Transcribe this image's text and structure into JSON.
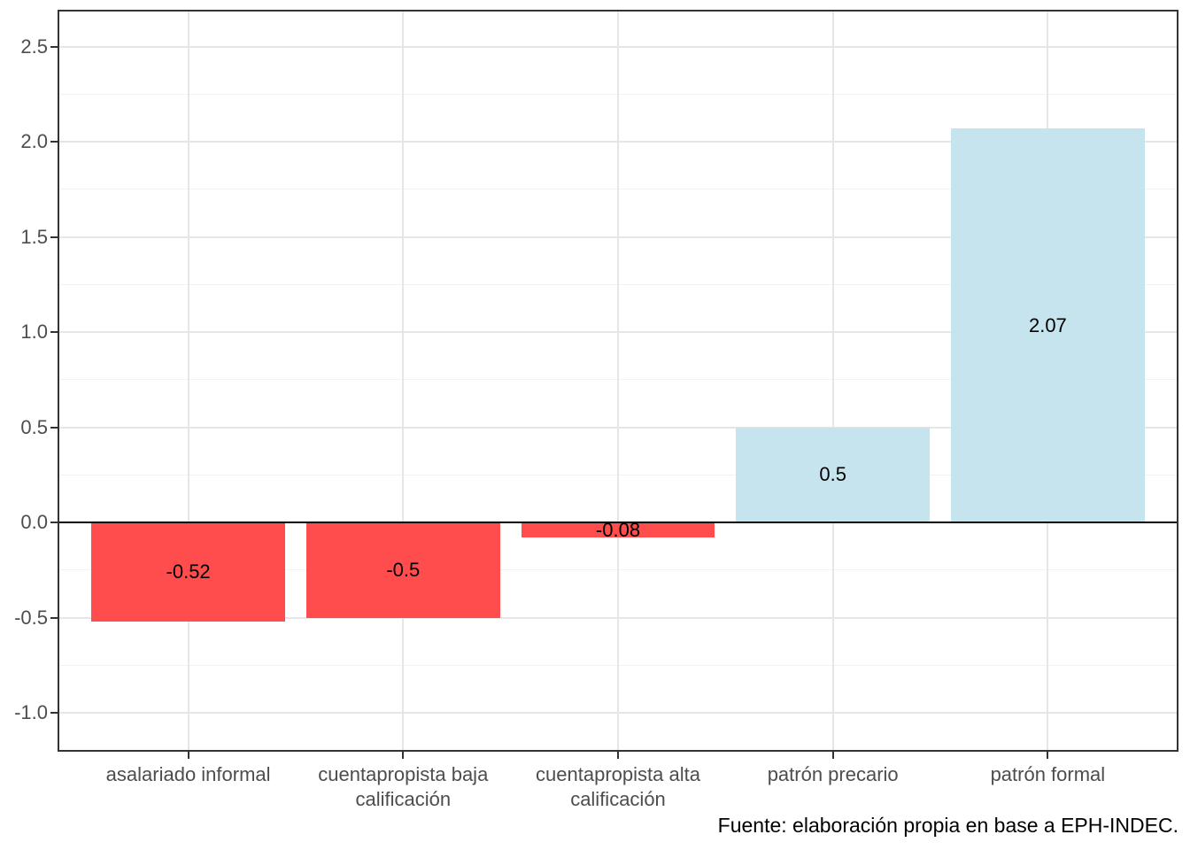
{
  "chart_data": {
    "type": "bar",
    "title": "",
    "xlabel": "",
    "ylabel": "",
    "categories": [
      "asalariado informal",
      "cuentapropista baja calificación",
      "cuentapropista alta calificación",
      "patrón precario",
      "patrón formal"
    ],
    "x_tick_labels": [
      "asalariado informal",
      "cuentapropista baja\ncalificación",
      "cuentapropista alta\ncalificación",
      "patrón precario",
      "patrón formal"
    ],
    "values": [
      -0.52,
      -0.5,
      -0.08,
      0.5,
      2.07
    ],
    "bar_labels": [
      "-0.52",
      "-0.5",
      "-0.08",
      "0.5",
      "2.07"
    ],
    "bar_colors": [
      "#FF4D4D",
      "#FF4D4D",
      "#FF4D4D",
      "#C6E4EE",
      "#C6E4EE"
    ],
    "ylim": [
      -1.195,
      2.684
    ],
    "y_major_ticks": [
      -1.0,
      -0.5,
      0.0,
      0.5,
      1.0,
      1.5,
      2.0,
      2.5
    ],
    "y_tick_labels": [
      "-1.0",
      "-0.5",
      "0.0",
      "0.5",
      "1.0",
      "1.5",
      "2.0",
      "2.5"
    ],
    "y_minor_gridlines": [
      -0.75,
      -0.25,
      0.25,
      0.75,
      1.25,
      1.75,
      2.25
    ],
    "zero_line": 0,
    "grid": true,
    "legend": "none",
    "bar_width_fraction": 0.9,
    "caption": "Fuente: elaboración propia en base a EPH-INDEC.",
    "colors": {
      "negative_bar": "#FF4D4D",
      "positive_bar": "#C6E4EE",
      "grid_major": "#E6E6E6",
      "grid_minor": "#F2F2F2",
      "panel_border": "#333333",
      "tick": "#333333",
      "axis_text": "#4D4D4D",
      "label_text": "#000000",
      "background": "#FFFFFF"
    }
  }
}
